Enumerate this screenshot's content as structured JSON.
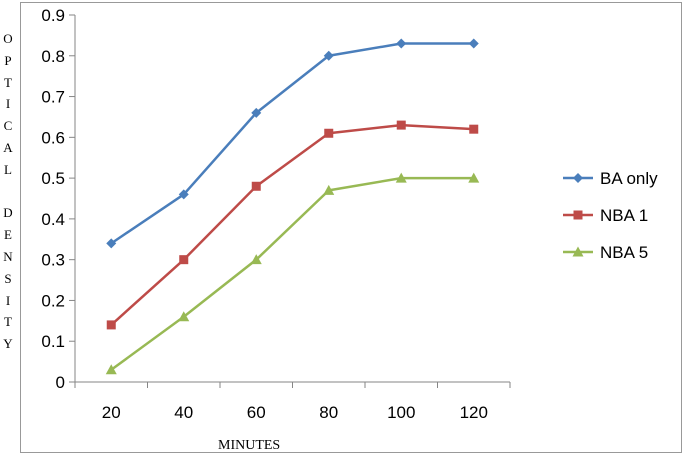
{
  "chart_data": {
    "type": "line",
    "title": "",
    "xlabel": "MINUTES",
    "ylabel": "OPTICAL DENSITY",
    "x": [
      20,
      40,
      60,
      80,
      100,
      120
    ],
    "ylim": [
      0,
      0.9
    ],
    "yticks": [
      0,
      0.1,
      0.2,
      0.3,
      0.4,
      0.5,
      0.6,
      0.7,
      0.8,
      0.9
    ],
    "grid": false,
    "legend_position": "right",
    "series": [
      {
        "name": "BA only",
        "values": [
          0.34,
          0.46,
          0.66,
          0.8,
          0.83,
          0.83
        ],
        "color": "#4a7ebb",
        "marker": "diamond"
      },
      {
        "name": "NBA 1",
        "values": [
          0.14,
          0.3,
          0.48,
          0.61,
          0.63,
          0.62
        ],
        "color": "#be4b48",
        "marker": "square"
      },
      {
        "name": "NBA 5",
        "values": [
          0.03,
          0.16,
          0.3,
          0.47,
          0.5,
          0.5
        ],
        "color": "#98b954",
        "marker": "triangle"
      }
    ]
  }
}
